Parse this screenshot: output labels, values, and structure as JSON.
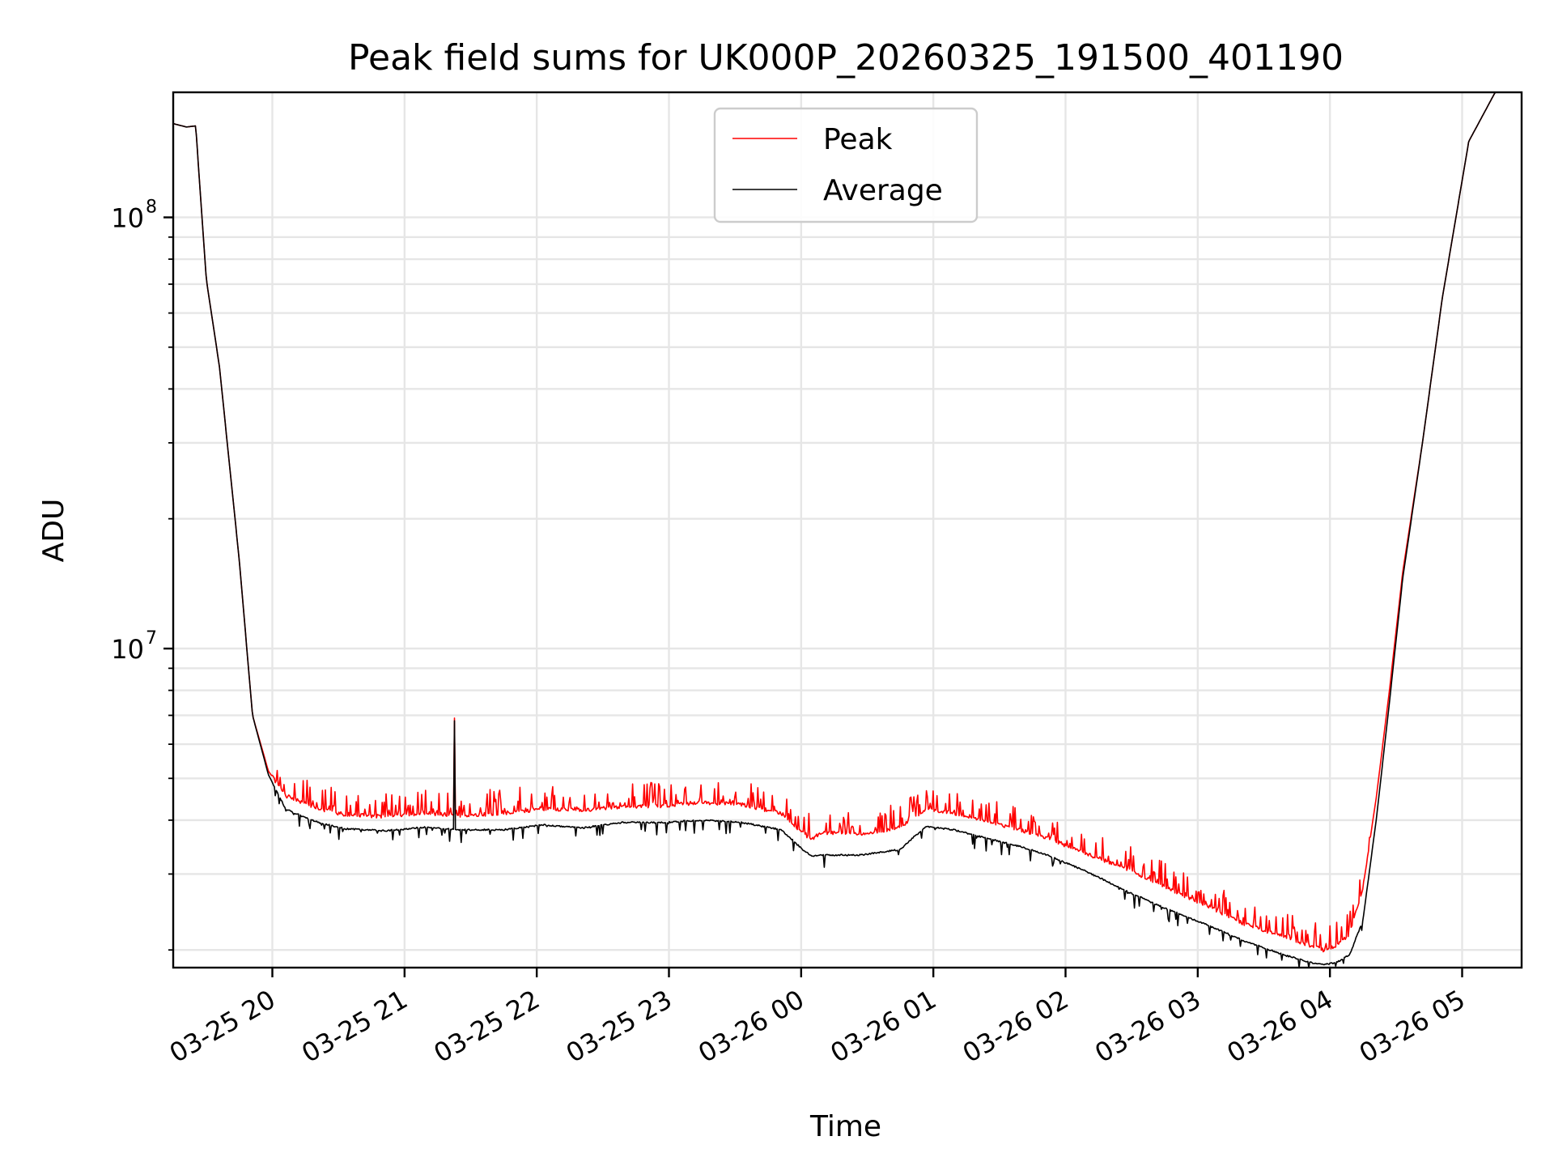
{
  "chart_data": {
    "type": "line",
    "title": "Peak field sums for UK000P_20260325_191500_401190",
    "xlabel": "Time",
    "ylabel": "ADU",
    "y_scale": "log",
    "ylim": [
      1820000,
      195000000
    ],
    "x_unit": "hours since 2026-03-25 19:15",
    "xlim": [
      0.0,
      10.2
    ],
    "x_ticks": [
      {
        "label": "03-25 20",
        "value": 0.75
      },
      {
        "label": "03-25 21",
        "value": 1.75
      },
      {
        "label": "03-25 22",
        "value": 2.75
      },
      {
        "label": "03-25 23",
        "value": 3.75
      },
      {
        "label": "03-26 00",
        "value": 4.75
      },
      {
        "label": "03-26 01",
        "value": 5.75
      },
      {
        "label": "03-26 02",
        "value": 6.75
      },
      {
        "label": "03-26 03",
        "value": 7.75
      },
      {
        "label": "03-26 04",
        "value": 8.75
      },
      {
        "label": "03-26 05",
        "value": 9.75
      }
    ],
    "y_major_ticks": [
      {
        "label_base": "10",
        "label_exp": "7",
        "value": 10000000
      },
      {
        "label_base": "10",
        "label_exp": "8",
        "value": 100000000
      }
    ],
    "grid": true,
    "legend": {
      "position": "upper-center",
      "entries": [
        "Peak",
        "Average"
      ]
    },
    "series": [
      {
        "name": "Peak",
        "color": "#ff0000",
        "x": [
          0.0,
          0.1,
          0.17,
          0.25,
          0.35,
          0.5,
          0.6,
          0.72,
          0.85,
          1.0,
          1.1,
          1.3,
          1.6,
          1.9,
          2.2,
          2.5,
          2.8,
          3.1,
          3.4,
          3.7,
          4.0,
          4.3,
          4.6,
          4.78,
          4.83,
          4.9,
          5.2,
          5.5,
          5.6,
          5.7,
          5.9,
          6.2,
          6.4,
          6.6,
          6.9,
          7.2,
          7.5,
          7.8,
          8.1,
          8.4,
          8.6,
          8.7,
          8.8,
          8.9,
          9.0,
          9.1,
          9.2,
          9.3,
          9.45,
          9.6,
          9.8,
          10.0,
          10.2
        ],
        "values": [
          165000000,
          162000000,
          163000000,
          72000000,
          45000000,
          16000000,
          7000000,
          5200000,
          4550000,
          4380000,
          4250000,
          4120000,
          4080000,
          4150000,
          4100000,
          4150000,
          4250000,
          4220000,
          4300000,
          4320000,
          4400000,
          4350000,
          4150000,
          3700000,
          3600000,
          3750000,
          3700000,
          3850000,
          4050000,
          4250000,
          4150000,
          3950000,
          3800000,
          3650000,
          3350000,
          3100000,
          2800000,
          2550000,
          2300000,
          2150000,
          2050000,
          2000000,
          2050000,
          2180000,
          2800000,
          4500000,
          8000000,
          15000000,
          30000000,
          65000000,
          150000000,
          195000000,
          195000000
        ]
      },
      {
        "name": "Average",
        "color": "#000000",
        "x": [
          0.0,
          0.1,
          0.17,
          0.25,
          0.35,
          0.5,
          0.6,
          0.72,
          0.85,
          1.0,
          1.1,
          1.3,
          1.6,
          1.9,
          2.2,
          2.5,
          2.8,
          3.1,
          3.4,
          3.7,
          4.0,
          4.3,
          4.6,
          4.78,
          4.83,
          4.9,
          5.2,
          5.5,
          5.6,
          5.7,
          5.9,
          6.2,
          6.4,
          6.6,
          6.9,
          7.2,
          7.5,
          7.8,
          8.1,
          8.4,
          8.6,
          8.7,
          8.8,
          8.9,
          9.0,
          9.1,
          9.2,
          9.3,
          9.45,
          9.6,
          9.8,
          10.0,
          10.2
        ],
        "values": [
          165000000,
          162000000,
          163000000,
          72000000,
          45000000,
          16000000,
          7000000,
          5100000,
          4250000,
          4050000,
          3950000,
          3820000,
          3780000,
          3850000,
          3800000,
          3800000,
          3900000,
          3840000,
          3950000,
          3950000,
          4000000,
          3950000,
          3800000,
          3380000,
          3300000,
          3320000,
          3320000,
          3420000,
          3650000,
          3870000,
          3800000,
          3600000,
          3480000,
          3330000,
          3050000,
          2750000,
          2500000,
          2300000,
          2100000,
          1950000,
          1870000,
          1850000,
          1870000,
          1950000,
          2350000,
          4000000,
          7500000,
          14500000,
          30000000,
          65000000,
          150000000,
          195000000,
          195000000
        ]
      }
    ],
    "spikes": [
      {
        "series": "Peak",
        "x": 2.13,
        "value": 6900000
      },
      {
        "series": "Average",
        "x": 2.13,
        "value": 6800000
      }
    ]
  }
}
